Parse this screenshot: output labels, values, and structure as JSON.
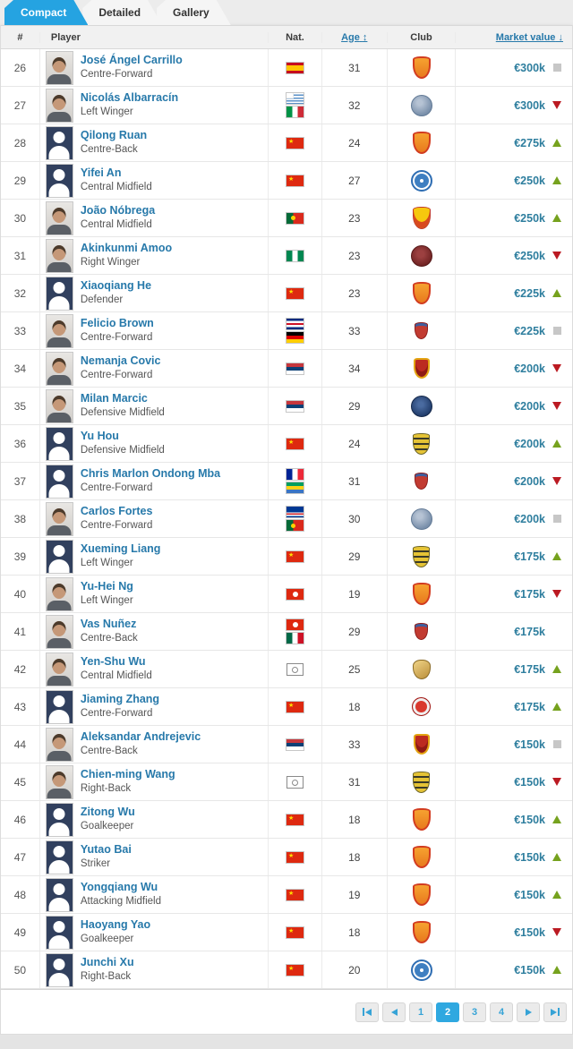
{
  "tabs": [
    {
      "label": "Compact",
      "active": true
    },
    {
      "label": "Detailed",
      "active": false
    },
    {
      "label": "Gallery",
      "active": false
    }
  ],
  "table": {
    "columns": {
      "rank": "#",
      "player": "Player",
      "nat": "Nat.",
      "age": "Age",
      "club": "Club",
      "market_value": "Market value"
    },
    "sort_icons": {
      "age": "↕",
      "market_value": "↓"
    },
    "rows": [
      {
        "rank": "26",
        "name": "José Ángel Carrillo",
        "position": "Centre-Forward",
        "avatar": "photo",
        "flags": [
          "spain"
        ],
        "age": "31",
        "club": "orange-shield",
        "value": "€300k",
        "trend": "steady"
      },
      {
        "rank": "27",
        "name": "Nicolás Albarracín",
        "position": "Left Winger",
        "avatar": "photo",
        "flags": [
          "uruguay",
          "italy"
        ],
        "age": "32",
        "club": "slate-circle",
        "value": "€300k",
        "trend": "down"
      },
      {
        "rank": "28",
        "name": "Qilong Ruan",
        "position": "Centre-Back",
        "avatar": "silhouette",
        "flags": [
          "china"
        ],
        "age": "24",
        "club": "orange-shield",
        "value": "€275k",
        "trend": "up"
      },
      {
        "rank": "29",
        "name": "Yifei An",
        "position": "Central Midfield",
        "avatar": "silhouette",
        "flags": [
          "china"
        ],
        "age": "27",
        "club": "blue-circle",
        "value": "€250k",
        "trend": "up"
      },
      {
        "rank": "30",
        "name": "João Nóbrega",
        "position": "Central Midfield",
        "avatar": "photo",
        "flags": [
          "portugal"
        ],
        "age": "23",
        "club": "yellow-red-shield",
        "value": "€250k",
        "trend": "up"
      },
      {
        "rank": "31",
        "name": "Akinkunmi Amoo",
        "position": "Right Winger",
        "avatar": "photo",
        "flags": [
          "nigeria"
        ],
        "age": "23",
        "club": "darkred-circle",
        "value": "€250k",
        "trend": "down"
      },
      {
        "rank": "32",
        "name": "Xiaoqiang He",
        "position": "Defender",
        "avatar": "silhouette",
        "flags": [
          "china"
        ],
        "age": "23",
        "club": "orange-shield",
        "value": "€225k",
        "trend": "up"
      },
      {
        "rank": "33",
        "name": "Felicio Brown",
        "position": "Centre-Forward",
        "avatar": "photo",
        "flags": [
          "costa-rica",
          "germany"
        ],
        "age": "33",
        "club": "red-crest",
        "value": "€225k",
        "trend": "steady"
      },
      {
        "rank": "34",
        "name": "Nemanja Covic",
        "position": "Centre-Forward",
        "avatar": "photo",
        "flags": [
          "serbia"
        ],
        "age": "34",
        "club": "red-yellow-crest",
        "value": "€200k",
        "trend": "down"
      },
      {
        "rank": "35",
        "name": "Milan Marcic",
        "position": "Defensive Midfield",
        "avatar": "photo",
        "flags": [
          "serbia"
        ],
        "age": "29",
        "club": "navy-circle",
        "value": "€200k",
        "trend": "down"
      },
      {
        "rank": "36",
        "name": "Yu Hou",
        "position": "Defensive Midfield",
        "avatar": "silhouette",
        "flags": [
          "china"
        ],
        "age": "24",
        "club": "yellow-black-shield",
        "value": "€200k",
        "trend": "up"
      },
      {
        "rank": "37",
        "name": "Chris Marlon Ondong Mba",
        "position": "Centre-Forward",
        "avatar": "silhouette",
        "flags": [
          "france",
          "gabon"
        ],
        "age": "31",
        "club": "red-crest",
        "value": "€200k",
        "trend": "down"
      },
      {
        "rank": "38",
        "name": "Carlos Fortes",
        "position": "Centre-Forward",
        "avatar": "photo",
        "flags": [
          "cape-verde",
          "portugal"
        ],
        "age": "30",
        "club": "slate-circle",
        "value": "€200k",
        "trend": "steady"
      },
      {
        "rank": "39",
        "name": "Xueming Liang",
        "position": "Left Winger",
        "avatar": "silhouette",
        "flags": [
          "china"
        ],
        "age": "29",
        "club": "yellow-black-shield",
        "value": "€175k",
        "trend": "up"
      },
      {
        "rank": "40",
        "name": "Yu-Hei Ng",
        "position": "Left Winger",
        "avatar": "photo",
        "flags": [
          "hong-kong"
        ],
        "age": "19",
        "club": "orange-shield",
        "value": "€175k",
        "trend": "down"
      },
      {
        "rank": "41",
        "name": "Vas Nuñez",
        "position": "Centre-Back",
        "avatar": "photo",
        "flags": [
          "hong-kong",
          "mexico"
        ],
        "age": "29",
        "club": "red-crest",
        "value": "€175k",
        "trend": "none"
      },
      {
        "rank": "42",
        "name": "Yen-Shu Wu",
        "position": "Central Midfield",
        "avatar": "photo",
        "flags": [
          "placeholder"
        ],
        "age": "25",
        "club": "gold-crest",
        "value": "€175k",
        "trend": "up"
      },
      {
        "rank": "43",
        "name": "Jiaming Zhang",
        "position": "Centre-Forward",
        "avatar": "silhouette",
        "flags": [
          "china"
        ],
        "age": "18",
        "club": "red-circle",
        "value": "€175k",
        "trend": "up"
      },
      {
        "rank": "44",
        "name": "Aleksandar Andrejevic",
        "position": "Centre-Back",
        "avatar": "photo",
        "flags": [
          "serbia"
        ],
        "age": "33",
        "club": "red-yellow-crest",
        "value": "€150k",
        "trend": "steady"
      },
      {
        "rank": "45",
        "name": "Chien-ming Wang",
        "position": "Right-Back",
        "avatar": "photo",
        "flags": [
          "placeholder"
        ],
        "age": "31",
        "club": "yellow-black-shield",
        "value": "€150k",
        "trend": "down"
      },
      {
        "rank": "46",
        "name": "Zitong Wu",
        "position": "Goalkeeper",
        "avatar": "silhouette",
        "flags": [
          "china"
        ],
        "age": "18",
        "club": "orange-shield",
        "value": "€150k",
        "trend": "up"
      },
      {
        "rank": "47",
        "name": "Yutao Bai",
        "position": "Striker",
        "avatar": "silhouette",
        "flags": [
          "china"
        ],
        "age": "18",
        "club": "orange-shield",
        "value": "€150k",
        "trend": "up"
      },
      {
        "rank": "48",
        "name": "Yongqiang Wu",
        "position": "Attacking Midfield",
        "avatar": "silhouette",
        "flags": [
          "china"
        ],
        "age": "19",
        "club": "orange-shield",
        "value": "€150k",
        "trend": "up"
      },
      {
        "rank": "49",
        "name": "Haoyang Yao",
        "position": "Goalkeeper",
        "avatar": "silhouette",
        "flags": [
          "china"
        ],
        "age": "18",
        "club": "orange-shield",
        "value": "€150k",
        "trend": "down"
      },
      {
        "rank": "50",
        "name": "Junchi Xu",
        "position": "Right-Back",
        "avatar": "silhouette",
        "flags": [
          "china"
        ],
        "age": "20",
        "club": "blue-circle",
        "value": "€150k",
        "trend": "up"
      }
    ]
  },
  "pagination": {
    "pages": [
      "1",
      "2",
      "3",
      "4"
    ],
    "active_page": "2",
    "controls": [
      "first",
      "prev",
      "next",
      "last"
    ]
  },
  "colors": {
    "accent_blue": "#25a3e1",
    "link_blue": "#2779aa",
    "value_teal": "#2e7e9e",
    "trend_up_green": "#76a21e",
    "trend_down_red": "#bb1a22",
    "trend_steady_gray": "#c7c7c7"
  }
}
